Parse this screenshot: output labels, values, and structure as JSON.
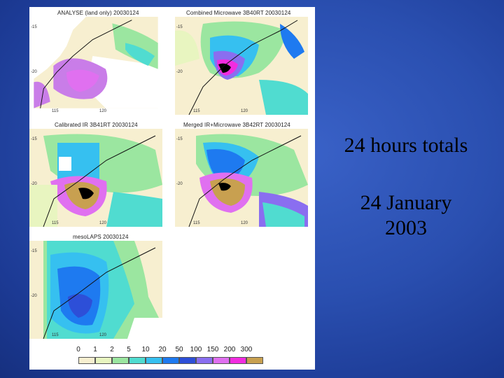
{
  "panels": [
    {
      "title": "ANALYSE (land only) 20030124",
      "ticks": {
        "y": [
          "-15",
          "-20"
        ],
        "x": [
          "115",
          "120"
        ]
      }
    },
    {
      "title": "Combined Microwave 3B40RT 20030124",
      "ticks": {
        "y": [
          "-15",
          "-20"
        ],
        "x": [
          "115",
          "120"
        ]
      }
    },
    {
      "title": "Calibrated IR 3B41RT 20030124",
      "ticks": {
        "y": [
          "-15",
          "-20"
        ],
        "x": [
          "115",
          "120"
        ]
      }
    },
    {
      "title": "Merged IR+Microwave 3B42RT 20030124",
      "ticks": {
        "y": [
          "-15",
          "-20"
        ],
        "x": [
          "115",
          "120"
        ]
      }
    },
    {
      "title": "mesoLAPS 20030124",
      "ticks": {
        "y": [
          "-15",
          "-20"
        ],
        "x": [
          "115",
          "120"
        ]
      }
    }
  ],
  "colorbar": {
    "labels": [
      "0",
      "1",
      "2",
      "5",
      "10",
      "20",
      "50",
      "100",
      "150",
      "200",
      "300"
    ],
    "colors": [
      "#f7efd0",
      "#e8f5c0",
      "#9be6a0",
      "#50dcd0",
      "#36c0f0",
      "#1e7af0",
      "#2d4fd8",
      "#8a6ef0",
      "#e070f0",
      "#f22ce0",
      "#c8a050"
    ]
  },
  "caption": {
    "title": "24 hours totals",
    "date": "24 January 2003"
  }
}
